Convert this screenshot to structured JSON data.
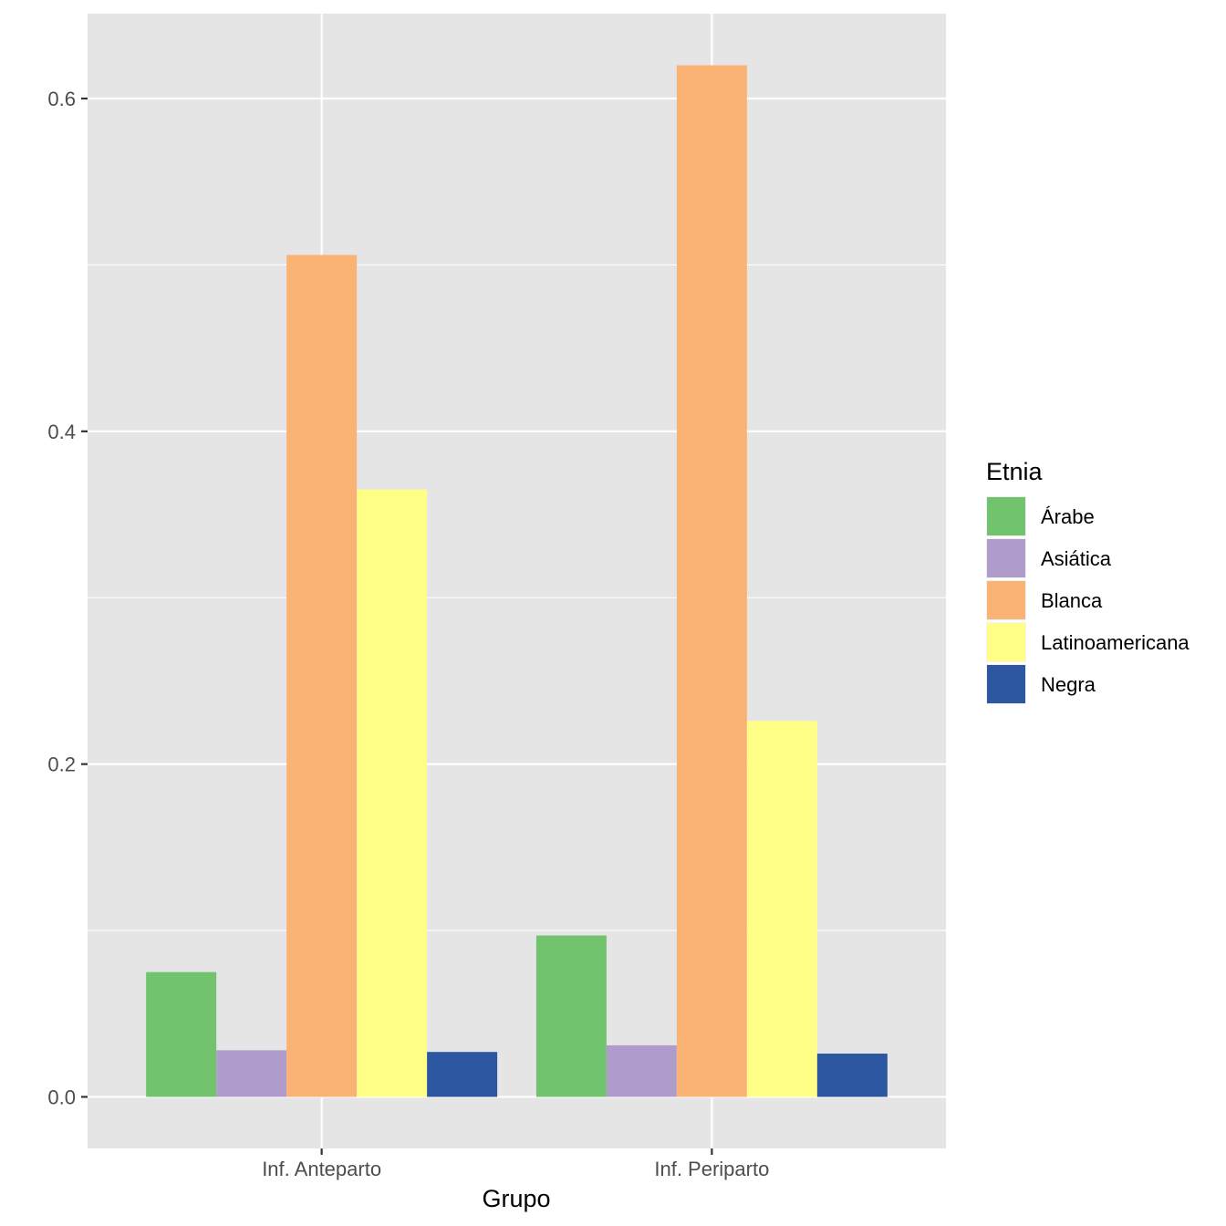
{
  "chart_data": {
    "type": "bar",
    "categories": [
      "Inf. Anteparto",
      "Inf. Periparto"
    ],
    "series": [
      {
        "name": "Árabe",
        "color": "#71C36E",
        "values": [
          0.075,
          0.097
        ]
      },
      {
        "name": "Asiática",
        "color": "#B09CCA",
        "values": [
          0.028,
          0.031
        ]
      },
      {
        "name": "Blanca",
        "color": "#FAB275",
        "values": [
          0.506,
          0.62
        ]
      },
      {
        "name": "Latinoamericana",
        "color": "#FFFF88",
        "values": [
          0.365,
          0.226
        ]
      },
      {
        "name": "Negra",
        "color": "#2D57A0",
        "values": [
          0.027,
          0.026
        ]
      }
    ],
    "xlabel": "Grupo",
    "ylabel": "",
    "ylim": [
      -0.031,
      0.651
    ],
    "yticks": [
      0.0,
      0.2,
      0.4,
      0.6
    ],
    "ytick_labels": [
      "0.0",
      "0.2",
      "0.4",
      "0.6"
    ],
    "legend_title": "Etnia",
    "legend_position": "right",
    "grid": true,
    "panel_background": "#E5E5E5",
    "grid_color": "#FFFFFF"
  }
}
